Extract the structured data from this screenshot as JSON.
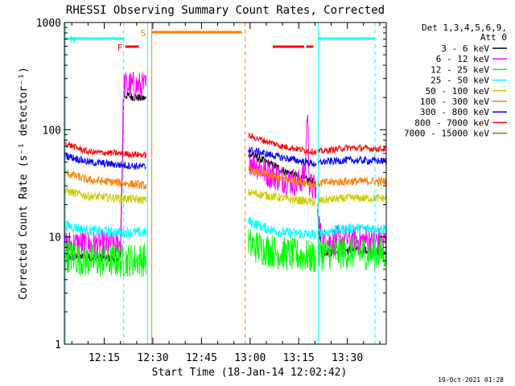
{
  "chart_data": {
    "type": "line",
    "title": "RHESSI Observing Summary Count Rates, Corrected",
    "xlabel": "Start Time (18-Jan-14 12:02:42)",
    "ylabel": "Corrected Count Rate (s⁻¹ detector⁻¹)",
    "y_scale": "log",
    "ylim": [
      1,
      1000
    ],
    "xlim": [
      "12:02:42",
      "13:42:00"
    ],
    "x_ticks": [
      "12:15",
      "12:30",
      "12:45",
      "13:00",
      "13:15",
      "13:30"
    ],
    "y_ticks": [
      "1",
      "10",
      "100",
      "1000"
    ],
    "grid": false,
    "legend": {
      "position": "right",
      "header": [
        "Det 1,3,4,5,6,9,",
        "Att 0"
      ]
    },
    "data_gaps": [
      [
        "12:28:00",
        "12:59:30"
      ],
      [
        "13:20:20",
        "13:20:50"
      ]
    ],
    "series": [
      {
        "name": "3 - 6 keV",
        "color": "#000000",
        "x": [
          "12:02:42",
          "12:10",
          "12:20",
          "12:21",
          "12:25",
          "12:28",
          "12:59:30",
          "13:05",
          "13:10",
          "13:15",
          "13:20",
          "13:22",
          "13:30",
          "13:42"
        ],
        "y": [
          6.5,
          6.5,
          6.3,
          210,
          200,
          195,
          60,
          50,
          42,
          36,
          32,
          7.2,
          7.5,
          7.4
        ]
      },
      {
        "name": "6 - 12 keV",
        "color": "#ff00ff",
        "x": [
          "12:02:42",
          "12:10",
          "12:20",
          "12:21",
          "12:25",
          "12:28",
          "12:59:30",
          "13:05",
          "13:10",
          "13:15",
          "13:17",
          "13:17:40",
          "13:18:20",
          "13:20",
          "13:22",
          "13:30",
          "13:42"
        ],
        "y": [
          8.5,
          8.5,
          8.5,
          260,
          255,
          250,
          55,
          40,
          35,
          32,
          40,
          160,
          30,
          28,
          9,
          9.5,
          9
        ]
      },
      {
        "name": "12 - 25 keV",
        "color": "#00ff00",
        "x": [
          "12:02:42",
          "12:10",
          "12:20",
          "12:28",
          "12:59:30",
          "13:10",
          "13:20",
          "13:22",
          "13:30",
          "13:42"
        ],
        "y": [
          6.8,
          6,
          6,
          6.2,
          8.5,
          7,
          6.5,
          7,
          7.2,
          7
        ]
      },
      {
        "name": "25 - 50 keV",
        "color": "#00ffff",
        "x": [
          "12:02:42",
          "12:10",
          "12:20",
          "12:28",
          "12:59:30",
          "13:05",
          "13:10",
          "13:20",
          "13:22",
          "13:30",
          "13:42"
        ],
        "y": [
          13,
          11.5,
          11,
          11,
          14,
          12,
          11,
          10.5,
          11,
          12,
          12
        ]
      },
      {
        "name": "50 - 100 keV",
        "color": "#cccc00",
        "x": [
          "12:02:42",
          "12:10",
          "12:20",
          "12:28",
          "12:59:30",
          "13:10",
          "13:20",
          "13:22",
          "13:30",
          "13:42"
        ],
        "y": [
          27,
          24,
          23,
          22,
          26,
          23,
          21,
          22,
          23,
          23
        ]
      },
      {
        "name": "100 - 300 keV",
        "color": "#ff8000",
        "x": [
          "12:02:42",
          "12:10",
          "12:20",
          "12:28",
          "12:59:30",
          "13:10",
          "13:20",
          "13:22",
          "13:30",
          "13:42"
        ],
        "y": [
          40,
          34,
          32,
          30,
          42,
          35,
          31,
          32,
          33,
          33
        ]
      },
      {
        "name": "300 - 800 keV",
        "color": "#0000ff",
        "x": [
          "12:02:42",
          "12:10",
          "12:20",
          "12:28",
          "12:59:30",
          "13:10",
          "13:20",
          "13:22",
          "13:30",
          "13:42"
        ],
        "y": [
          58,
          50,
          47,
          45,
          65,
          55,
          48,
          50,
          52,
          51
        ]
      },
      {
        "name": "800 - 7000 keV",
        "color": "#ff0000",
        "x": [
          "12:02:42",
          "12:10",
          "12:20",
          "12:28",
          "12:59:30",
          "13:05",
          "13:10",
          "13:20",
          "13:22",
          "13:30",
          "13:42"
        ],
        "y": [
          75,
          62,
          60,
          58,
          88,
          78,
          70,
          62,
          63,
          68,
          66
        ]
      },
      {
        "name": "7000 - 15000 keV",
        "color": "#808000",
        "x": [],
        "y": []
      }
    ],
    "vertical_lines": [
      {
        "time": "12:03:00",
        "color": "#00ffff",
        "style": "solid"
      },
      {
        "time": "12:21:00",
        "color": "#00ffff",
        "style": "dashed"
      },
      {
        "time": "12:28:20",
        "color": "#00ffff",
        "style": "solid"
      },
      {
        "time": "12:29:40",
        "color": "#ff8000",
        "style": "solid"
      },
      {
        "time": "12:58:30",
        "color": "#ff8000",
        "style": "dashed"
      },
      {
        "time": "13:21:00",
        "color": "#00ffff",
        "style": "solid"
      },
      {
        "time": "13:38:30",
        "color": "#00ffff",
        "style": "dashed"
      }
    ],
    "flag_bars": [
      {
        "label": "N",
        "color": "#00ffff",
        "label_color": "#00ffff",
        "intervals": [
          [
            "12:03:00",
            "12:21:00"
          ],
          [
            "13:21:00",
            "13:38:30"
          ]
        ]
      },
      {
        "label": "F",
        "color": "#ff0000",
        "label_color": "#ff0000",
        "intervals": [
          [
            "12:21:30",
            "12:25:40"
          ],
          [
            "13:07:00",
            "13:16:40"
          ],
          [
            "13:17:20",
            "13:19:30"
          ]
        ]
      },
      {
        "label": "S",
        "color": "#ff8000",
        "label_color": "#ff8000",
        "intervals": [
          [
            "12:29:40",
            "12:57:30"
          ]
        ]
      }
    ]
  },
  "footer": {
    "timestamp": "19-Oct-2021 01:28"
  }
}
